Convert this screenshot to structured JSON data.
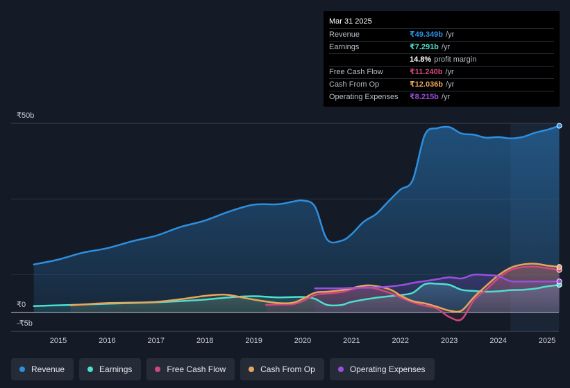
{
  "chart_data": {
    "type": "area",
    "title": "",
    "xlabel": "",
    "ylabel": "",
    "ylim": [
      -5,
      50
    ],
    "y_ticks": [
      {
        "value": 50,
        "label": "₹50b"
      },
      {
        "value": 0,
        "label": "₹0"
      },
      {
        "value": -5,
        "label": "-₹5b"
      }
    ],
    "x_ticks": [
      "2015",
      "2016",
      "2017",
      "2018",
      "2019",
      "2020",
      "2021",
      "2022",
      "2023",
      "2024",
      "2025"
    ],
    "forecast_start": 2024.25,
    "series": [
      {
        "name": "Revenue",
        "color": "#2d8fe0",
        "points": [
          [
            2014.5,
            12.7
          ],
          [
            2015.0,
            14.0
          ],
          [
            2015.5,
            15.8
          ],
          [
            2016.0,
            17.0
          ],
          [
            2016.5,
            18.8
          ],
          [
            2017.0,
            20.3
          ],
          [
            2017.5,
            22.6
          ],
          [
            2018.0,
            24.3
          ],
          [
            2018.5,
            26.7
          ],
          [
            2019.0,
            28.5
          ],
          [
            2019.5,
            28.6
          ],
          [
            2019.8,
            29.3
          ],
          [
            2020.0,
            29.6
          ],
          [
            2020.25,
            28.0
          ],
          [
            2020.5,
            19.3
          ],
          [
            2020.8,
            19.0
          ],
          [
            2021.0,
            20.7
          ],
          [
            2021.25,
            24.0
          ],
          [
            2021.5,
            26.0
          ],
          [
            2021.75,
            29.3
          ],
          [
            2022.0,
            32.5
          ],
          [
            2022.25,
            35.0
          ],
          [
            2022.5,
            47.0
          ],
          [
            2022.75,
            48.7
          ],
          [
            2023.0,
            49.0
          ],
          [
            2023.25,
            47.3
          ],
          [
            2023.5,
            47.0
          ],
          [
            2023.75,
            46.2
          ],
          [
            2024.0,
            46.4
          ],
          [
            2024.25,
            46.0
          ],
          [
            2024.5,
            46.4
          ],
          [
            2024.75,
            47.5
          ],
          [
            2025.0,
            48.3
          ],
          [
            2025.25,
            49.349
          ]
        ]
      },
      {
        "name": "Earnings",
        "color": "#4de0cf",
        "points": [
          [
            2014.5,
            1.7
          ],
          [
            2015.0,
            1.9
          ],
          [
            2015.5,
            2.1
          ],
          [
            2016.0,
            2.3
          ],
          [
            2016.5,
            2.5
          ],
          [
            2017.0,
            2.7
          ],
          [
            2017.5,
            3.0
          ],
          [
            2018.0,
            3.4
          ],
          [
            2018.5,
            4.0
          ],
          [
            2019.0,
            4.3
          ],
          [
            2019.5,
            4.0
          ],
          [
            2020.0,
            4.1
          ],
          [
            2020.25,
            3.6
          ],
          [
            2020.5,
            2.0
          ],
          [
            2020.8,
            2.0
          ],
          [
            2021.0,
            2.8
          ],
          [
            2021.5,
            3.9
          ],
          [
            2022.0,
            4.6
          ],
          [
            2022.25,
            5.2
          ],
          [
            2022.5,
            7.5
          ],
          [
            2022.75,
            7.6
          ],
          [
            2023.0,
            7.3
          ],
          [
            2023.25,
            6.0
          ],
          [
            2023.5,
            5.7
          ],
          [
            2023.75,
            5.5
          ],
          [
            2024.0,
            5.6
          ],
          [
            2024.25,
            5.9
          ],
          [
            2024.5,
            6.0
          ],
          [
            2024.75,
            6.3
          ],
          [
            2025.0,
            6.9
          ],
          [
            2025.25,
            7.291
          ]
        ]
      },
      {
        "name": "Free Cash Flow",
        "color": "#d1477f",
        "points": [
          [
            2019.25,
            2.0
          ],
          [
            2019.5,
            2.1
          ],
          [
            2019.8,
            2.2
          ],
          [
            2020.0,
            3.0
          ],
          [
            2020.25,
            4.6
          ],
          [
            2020.5,
            5.0
          ],
          [
            2020.8,
            5.4
          ],
          [
            2021.0,
            6.1
          ],
          [
            2021.25,
            6.7
          ],
          [
            2021.5,
            6.3
          ],
          [
            2021.8,
            5.1
          ],
          [
            2022.0,
            4.0
          ],
          [
            2022.25,
            2.7
          ],
          [
            2022.5,
            1.8
          ],
          [
            2022.75,
            1.0
          ],
          [
            2023.0,
            -1.2
          ],
          [
            2023.25,
            -1.8
          ],
          [
            2023.5,
            3.2
          ],
          [
            2023.75,
            6.0
          ],
          [
            2024.0,
            9.0
          ],
          [
            2024.25,
            11.2
          ],
          [
            2024.5,
            12.0
          ],
          [
            2024.75,
            12.1
          ],
          [
            2025.0,
            11.7
          ],
          [
            2025.25,
            11.24
          ]
        ]
      },
      {
        "name": "Cash From Op",
        "color": "#e8a55b",
        "points": [
          [
            2015.25,
            1.9
          ],
          [
            2015.5,
            2.1
          ],
          [
            2016.0,
            2.5
          ],
          [
            2016.5,
            2.6
          ],
          [
            2017.0,
            2.8
          ],
          [
            2017.5,
            3.5
          ],
          [
            2018.0,
            4.4
          ],
          [
            2018.3,
            4.7
          ],
          [
            2018.5,
            4.6
          ],
          [
            2019.0,
            3.4
          ],
          [
            2019.5,
            2.5
          ],
          [
            2019.8,
            2.6
          ],
          [
            2020.0,
            3.6
          ],
          [
            2020.25,
            5.2
          ],
          [
            2020.5,
            5.5
          ],
          [
            2020.8,
            5.9
          ],
          [
            2021.0,
            6.4
          ],
          [
            2021.25,
            7.1
          ],
          [
            2021.5,
            7.0
          ],
          [
            2021.8,
            6.0
          ],
          [
            2022.0,
            4.5
          ],
          [
            2022.25,
            3.0
          ],
          [
            2022.5,
            2.4
          ],
          [
            2022.75,
            1.5
          ],
          [
            2023.0,
            0.5
          ],
          [
            2023.25,
            0.5
          ],
          [
            2023.5,
            4.0
          ],
          [
            2023.75,
            7.0
          ],
          [
            2024.0,
            9.8
          ],
          [
            2024.25,
            11.8
          ],
          [
            2024.5,
            12.7
          ],
          [
            2024.75,
            12.9
          ],
          [
            2025.0,
            12.4
          ],
          [
            2025.25,
            12.036
          ]
        ]
      },
      {
        "name": "Operating Expenses",
        "color": "#9b4fe0",
        "points": [
          [
            2020.25,
            6.4
          ],
          [
            2020.5,
            6.4
          ],
          [
            2020.8,
            6.4
          ],
          [
            2021.0,
            6.5
          ],
          [
            2021.5,
            6.6
          ],
          [
            2022.0,
            7.2
          ],
          [
            2022.25,
            7.8
          ],
          [
            2022.5,
            8.3
          ],
          [
            2022.75,
            8.8
          ],
          [
            2023.0,
            9.3
          ],
          [
            2023.25,
            9.0
          ],
          [
            2023.5,
            10.0
          ],
          [
            2023.75,
            9.9
          ],
          [
            2024.0,
            9.6
          ],
          [
            2024.25,
            8.3
          ],
          [
            2024.5,
            8.2
          ],
          [
            2024.75,
            8.2
          ],
          [
            2025.0,
            8.2
          ],
          [
            2025.25,
            8.215
          ]
        ]
      }
    ]
  },
  "tooltip": {
    "date": "Mar 31 2025",
    "rows": [
      {
        "label": "Revenue",
        "value": "₹49.349b",
        "unit": "/yr",
        "color": "#2d8fe0"
      },
      {
        "label": "Earnings",
        "value": "₹7.291b",
        "unit": "/yr",
        "color": "#4de0cf"
      },
      {
        "label": "",
        "value": "14.8%",
        "unit": "profit margin",
        "color": "#ffffff"
      },
      {
        "label": "Free Cash Flow",
        "value": "₹11.240b",
        "unit": "/yr",
        "color": "#d1477f"
      },
      {
        "label": "Cash From Op",
        "value": "₹12.036b",
        "unit": "/yr",
        "color": "#e8a55b"
      },
      {
        "label": "Operating Expenses",
        "value": "₹8.215b",
        "unit": "/yr",
        "color": "#9b4fe0"
      }
    ]
  },
  "legend": [
    {
      "label": "Revenue",
      "color": "#2d8fe0"
    },
    {
      "label": "Earnings",
      "color": "#4de0cf"
    },
    {
      "label": "Free Cash Flow",
      "color": "#d1477f"
    },
    {
      "label": "Cash From Op",
      "color": "#e8a55b"
    },
    {
      "label": "Operating Expenses",
      "color": "#9b4fe0"
    }
  ]
}
